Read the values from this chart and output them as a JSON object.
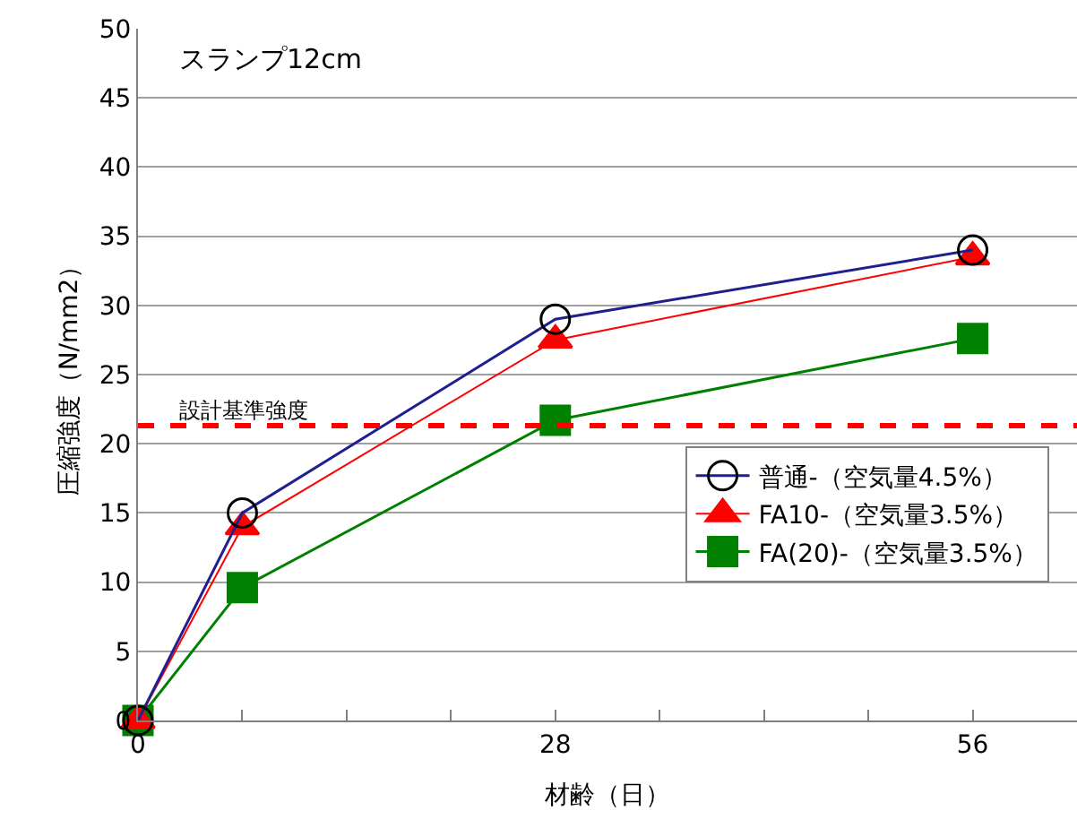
{
  "chart_data": {
    "type": "line",
    "xlabel": "材齢（日）",
    "ylabel": "圧縮強度（N/mm2）",
    "annotations": [
      "スランプ12cm"
    ],
    "x": [
      0,
      7,
      28,
      56
    ],
    "series": [
      {
        "name": "普通-（空気量4.5%）",
        "color": "#1f1f8f",
        "values": [
          0,
          15,
          29,
          34
        ],
        "marker": "circle"
      },
      {
        "name": "FA10-（空気量3.5%）",
        "color": "#ff0000",
        "values": [
          0,
          14,
          27.5,
          33.5
        ],
        "marker": "triangle"
      },
      {
        "name": "FA(20)-（空気量3.5%）",
        "color": "#008000",
        "values": [
          0,
          9.6,
          21.7,
          27.6
        ],
        "marker": "square"
      }
    ],
    "ref_lines": [
      {
        "axis": "y",
        "value": 21.3,
        "label": "設計基準強度",
        "color": "#ff0000",
        "line_style": "dashed"
      }
    ],
    "xlim": [
      0,
      63
    ],
    "xticks": [
      0,
      {
        "value": 7,
        "label": null
      },
      {
        "value": 14,
        "label": null
      },
      {
        "value": 21,
        "label": null
      },
      28,
      {
        "value": 35,
        "label": null
      },
      {
        "value": 42,
        "label": null
      },
      {
        "value": 49,
        "label": null
      },
      56
    ],
    "ylim": [
      0,
      50
    ],
    "yticks": [
      0,
      5,
      10,
      15,
      20,
      25,
      30,
      35,
      40,
      45,
      50
    ],
    "grid": "y",
    "legend": "bottom right"
  }
}
